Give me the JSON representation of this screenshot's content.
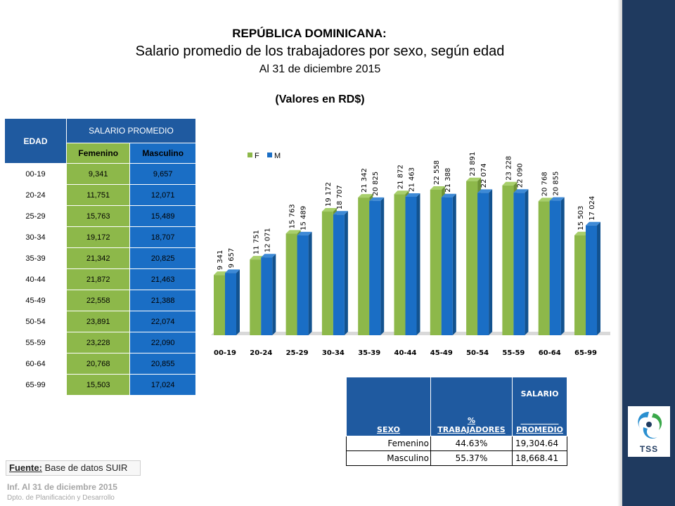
{
  "titles": {
    "country": "REPÚBLICA DOMINICANA:",
    "main": "Salario promedio de los trabajadores por sexo, según edad",
    "date": "Al 31 de diciembre 2015",
    "units": "(Valores en RD$)"
  },
  "table": {
    "col_edad": "EDAD",
    "col_salario": "SALARIO PROMEDIO",
    "col_fem": "Femenino",
    "col_mas": "Masculino",
    "rows": [
      {
        "age": "00-19",
        "fem": "9,341",
        "mas": "9,657"
      },
      {
        "age": "20-24",
        "fem": "11,751",
        "mas": "12,071"
      },
      {
        "age": "25-29",
        "fem": "15,763",
        "mas": "15,489"
      },
      {
        "age": "30-34",
        "fem": "19,172",
        "mas": "18,707"
      },
      {
        "age": "35-39",
        "fem": "21,342",
        "mas": "20,825"
      },
      {
        "age": "40-44",
        "fem": "21,872",
        "mas": "21,463"
      },
      {
        "age": "45-49",
        "fem": "22,558",
        "mas": "21,388"
      },
      {
        "age": "50-54",
        "fem": "23,891",
        "mas": "22,074"
      },
      {
        "age": "55-59",
        "fem": "23,228",
        "mas": "22,090"
      },
      {
        "age": "60-64",
        "fem": "20,768",
        "mas": "20,855"
      },
      {
        "age": "65-99",
        "fem": "15,503",
        "mas": "17,024"
      }
    ]
  },
  "chart_data": {
    "type": "bar",
    "categories": [
      "00-19",
      "20-24",
      "25-29",
      "30-34",
      "35-39",
      "40-44",
      "45-49",
      "50-54",
      "55-59",
      "60-64",
      "65-99"
    ],
    "series": [
      {
        "name": "F",
        "values": [
          9341,
          11751,
          15763,
          19172,
          21342,
          21872,
          22558,
          23891,
          23228,
          20768,
          15503
        ],
        "labels": [
          "9 341",
          "11 751",
          "15 763",
          "19 172",
          "21 342",
          "21 872",
          "22 558",
          "23 891",
          "23 228",
          "20 768",
          "15 503"
        ],
        "color": "#8db84a"
      },
      {
        "name": "M",
        "values": [
          9657,
          12071,
          15489,
          18707,
          20825,
          21463,
          21388,
          22074,
          22090,
          20855,
          17024
        ],
        "labels": [
          "9 657",
          "12 071",
          "15 489",
          "18 707",
          "20 825",
          "21 463",
          "21 388",
          "22 074",
          "22 090",
          "20 855",
          "17 024"
        ],
        "color": "#1a6ec5"
      }
    ],
    "legend_position": "top-left",
    "grid": false,
    "ylim": [
      0,
      28000
    ],
    "style": "3d-columns"
  },
  "summary": {
    "h_sexo": "SEXO",
    "h_pct_1": "%",
    "h_pct_2": "TRABAJADORES",
    "h_sal_1": "SALARIO",
    "h_sal_2": "PROMEDIO",
    "rows": [
      {
        "sexo": "Femenino",
        "pct": "44.63%",
        "salario": "19,304.64"
      },
      {
        "sexo": "Masculino",
        "pct": "55.37%",
        "salario": "18,668.41"
      }
    ]
  },
  "source": {
    "label": "Fuente:",
    "text": " Base de datos SUIR"
  },
  "footer": {
    "line1": "Inf. Al 31  de diciembre 2015",
    "line2": "Dpto. de Planificación y Desarrollo"
  },
  "logo": {
    "text": "TSS",
    "icon": "tss-logo-icon"
  }
}
